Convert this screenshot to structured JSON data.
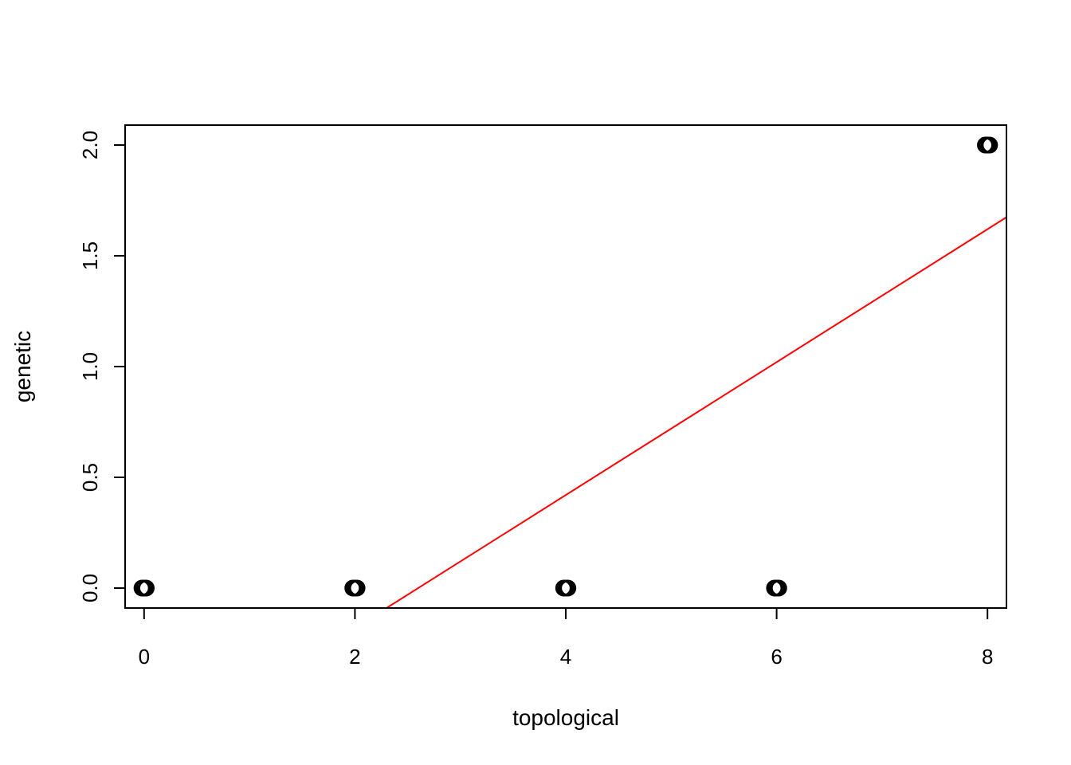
{
  "chart_data": {
    "type": "scatter",
    "title": "",
    "xlabel": "topological",
    "ylabel": "genetic",
    "xlim": [
      -0.18,
      8.18
    ],
    "ylim": [
      -0.09,
      2.09
    ],
    "x_ticks": [
      0,
      2,
      4,
      6,
      8
    ],
    "x_tick_labels": [
      "0",
      "2",
      "4",
      "6",
      "8"
    ],
    "y_ticks": [
      0.0,
      0.5,
      1.0,
      1.5,
      2.0
    ],
    "y_tick_labels": [
      "0.0",
      "0.5",
      "1.0",
      "1.5",
      "2.0"
    ],
    "grid": false,
    "series": [
      {
        "color": "#000000",
        "marker": "open-circle",
        "points": [
          {
            "x": 0,
            "y": 0
          },
          {
            "x": 0.02,
            "y": 0
          },
          {
            "x": -0.02,
            "y": 0
          },
          {
            "x": 2,
            "y": 0
          },
          {
            "x": 2.02,
            "y": 0
          },
          {
            "x": 1.98,
            "y": 0
          },
          {
            "x": 4,
            "y": 0
          },
          {
            "x": 4.02,
            "y": 0
          },
          {
            "x": 3.98,
            "y": 0
          },
          {
            "x": 6,
            "y": 0
          },
          {
            "x": 6.02,
            "y": 0
          },
          {
            "x": 5.98,
            "y": 0
          },
          {
            "x": 8,
            "y": 2
          },
          {
            "x": 8.02,
            "y": 2
          },
          {
            "x": 7.98,
            "y": 2
          }
        ]
      }
    ],
    "fit_line": {
      "color": "#ff0000",
      "intercept": -0.78,
      "slope": 0.3
    }
  }
}
